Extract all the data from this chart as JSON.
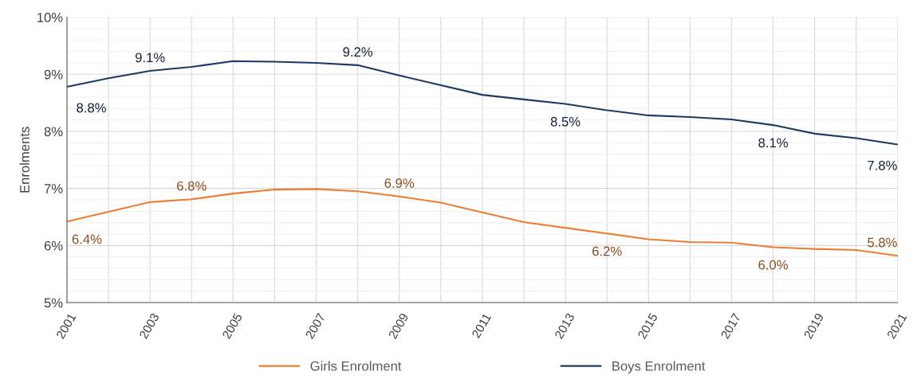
{
  "chart_data": {
    "type": "line",
    "ylabel": "Enrolments",
    "x": [
      2001,
      2002,
      2003,
      2004,
      2005,
      2006,
      2007,
      2008,
      2009,
      2010,
      2011,
      2012,
      2013,
      2014,
      2015,
      2016,
      2017,
      2018,
      2019,
      2020,
      2021
    ],
    "series": [
      {
        "name": "Girls Enrolment",
        "color": "#ed7d31",
        "values": [
          6.42,
          6.59,
          6.76,
          6.81,
          6.91,
          6.98,
          6.99,
          6.95,
          6.86,
          6.75,
          6.58,
          6.41,
          6.31,
          6.21,
          6.11,
          6.06,
          6.05,
          5.97,
          5.94,
          5.92,
          5.82
        ],
        "value_labels": [
          "6.4%",
          null,
          null,
          "6.8%",
          null,
          null,
          null,
          null,
          "6.9%",
          null,
          null,
          null,
          null,
          "6.2%",
          null,
          null,
          null,
          "6.0%",
          null,
          null,
          "5.8%"
        ]
      },
      {
        "name": "Boys Enrolment",
        "color": "#1f3864",
        "values": [
          8.78,
          8.93,
          9.06,
          9.13,
          9.23,
          9.22,
          9.2,
          9.16,
          8.98,
          8.81,
          8.64,
          8.56,
          8.48,
          8.37,
          8.28,
          8.25,
          8.21,
          8.11,
          7.96,
          7.88,
          7.77
        ],
        "value_labels": [
          "8.8%",
          null,
          "9.1%",
          null,
          null,
          null,
          null,
          "9.2%",
          null,
          null,
          null,
          null,
          "8.5%",
          null,
          null,
          null,
          null,
          "8.1%",
          null,
          null,
          "7.8%"
        ]
      }
    ],
    "xlim": [
      2001,
      2021
    ],
    "xticks": [
      2001,
      {
        "value": 2002,
        "label": null
      },
      2003,
      {
        "value": 2004,
        "label": null
      },
      2005,
      {
        "value": 2006,
        "label": null
      },
      2007,
      {
        "value": 2008,
        "label": null
      },
      2009,
      {
        "value": 2010,
        "label": null
      },
      2011,
      {
        "value": 2012,
        "label": null
      },
      2013,
      {
        "value": 2014,
        "label": null
      },
      2015,
      {
        "value": 2016,
        "label": null
      },
      2017,
      {
        "value": 2018,
        "label": null
      },
      2019,
      {
        "value": 2020,
        "label": null
      },
      2021
    ],
    "ylim": [
      5,
      10
    ],
    "yticks": [
      {
        "value": 5,
        "label": "5%"
      },
      {
        "value": 5.2,
        "label": null
      },
      {
        "value": 5.4,
        "label": null
      },
      {
        "value": 5.6,
        "label": null
      },
      {
        "value": 5.8,
        "label": null
      },
      {
        "value": 6,
        "label": "6%"
      },
      {
        "value": 6.2,
        "label": null
      },
      {
        "value": 6.4,
        "label": null
      },
      {
        "value": 6.6,
        "label": null
      },
      {
        "value": 6.8,
        "label": null
      },
      {
        "value": 7,
        "label": "7%"
      },
      {
        "value": 7.2,
        "label": null
      },
      {
        "value": 7.4,
        "label": null
      },
      {
        "value": 7.6,
        "label": null
      },
      {
        "value": 7.8,
        "label": null
      },
      {
        "value": 8,
        "label": "8%"
      },
      {
        "value": 8.2,
        "label": null
      },
      {
        "value": 8.4,
        "label": null
      },
      {
        "value": 8.6,
        "label": null
      },
      {
        "value": 8.8,
        "label": null
      },
      {
        "value": 9,
        "label": "9%"
      },
      {
        "value": 9.2,
        "label": null
      },
      {
        "value": 9.4,
        "label": null
      },
      {
        "value": 9.6,
        "label": null
      },
      {
        "value": 9.8,
        "label": null
      },
      {
        "value": 10,
        "label": "10%"
      }
    ],
    "grid": true,
    "legend": "bottom",
    "marker": "none",
    "line_style": "solid"
  }
}
